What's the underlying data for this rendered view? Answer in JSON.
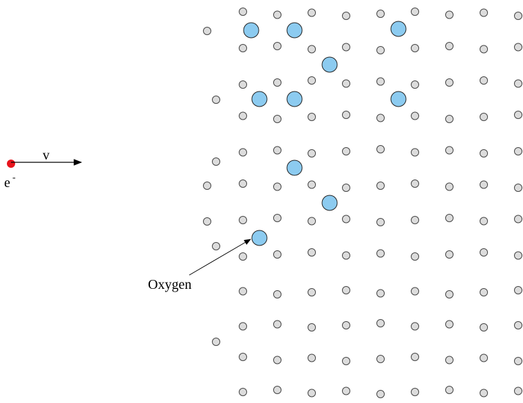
{
  "labels": {
    "velocity": "v",
    "electron": "e",
    "charge": "-",
    "oxygen": "Oxygen"
  }
}
